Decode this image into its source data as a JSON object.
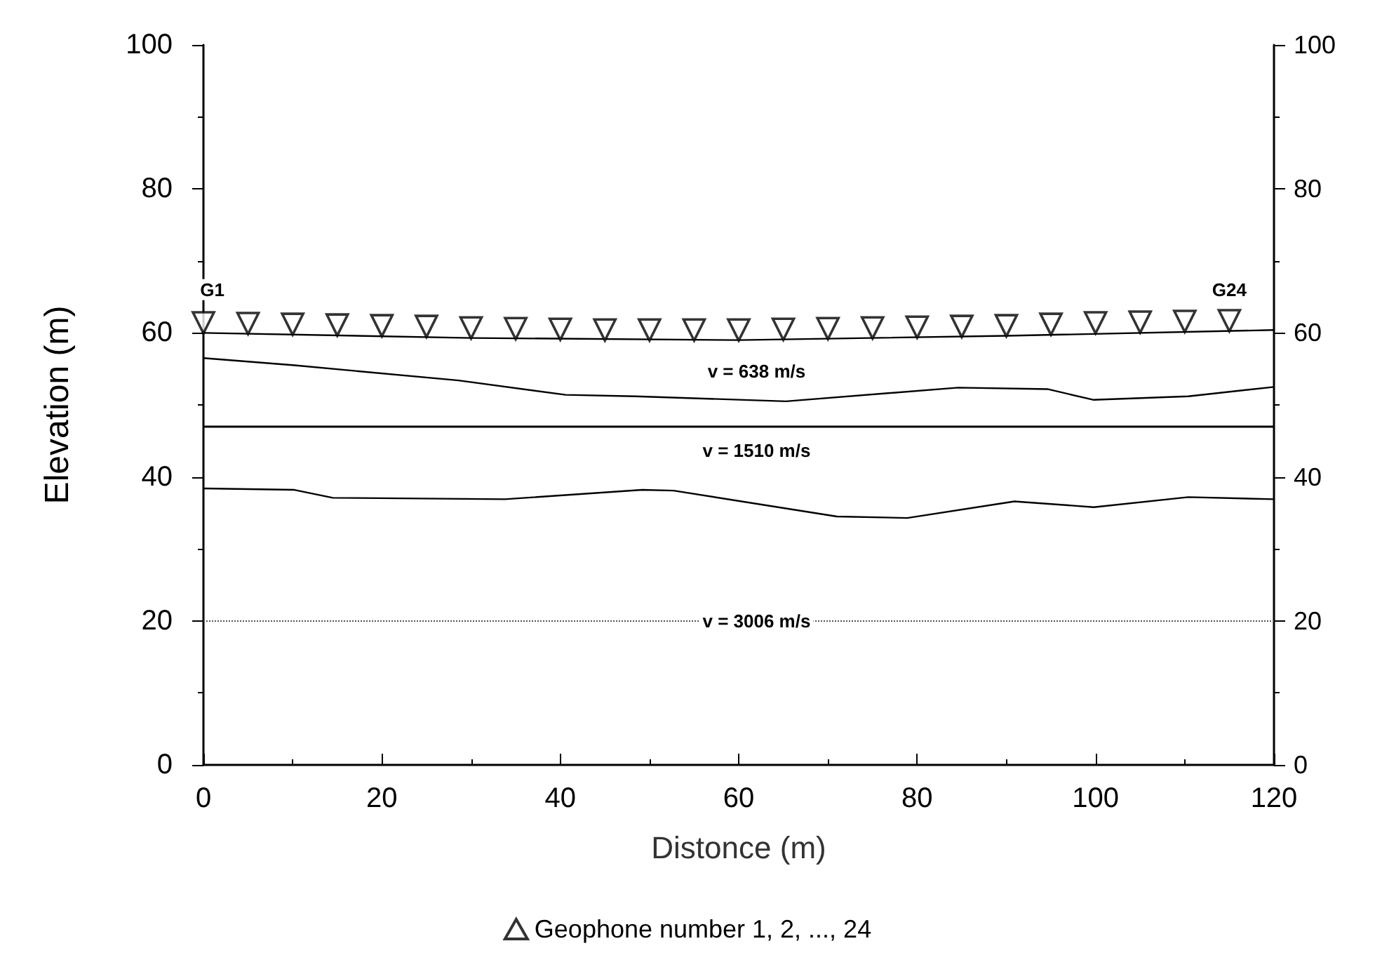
{
  "chart_data": {
    "type": "line",
    "xlabel": "Distonce (m)",
    "ylabel": "Elevation (m)",
    "xlim": [
      0,
      120
    ],
    "xticks": [
      0,
      20,
      40,
      60,
      80,
      100,
      120
    ],
    "ylim": [
      0,
      100
    ],
    "yticks": [
      0,
      20,
      40,
      60,
      80,
      100
    ],
    "y2lim": [
      0,
      100
    ],
    "y2ticks": [
      0,
      20,
      40,
      60,
      80,
      100
    ],
    "grid": false,
    "legend": "bottom",
    "line_style": "solid",
    "series": [
      {
        "color": "#000000",
        "marker": "none",
        "x": [
          0,
          30,
          60,
          90,
          120
        ],
        "values": [
          60,
          59.3,
          59,
          59.6,
          60.4
        ]
      },
      {
        "color": "#000000",
        "marker": "none",
        "x": [
          0,
          10.2,
          28.6,
          40.6,
          48.4,
          65.3,
          84.6,
          94.6,
          99.8,
          110.4,
          120
        ],
        "values": [
          56.5,
          55.5,
          53.4,
          51.4,
          51.2,
          50.5,
          52.4,
          52.2,
          50.7,
          51.2,
          52.5
        ]
      },
      {
        "color": "#000000",
        "marker": "none",
        "x": [
          0,
          10.2,
          14.5,
          33.8,
          49.2,
          52.7,
          71,
          78.9,
          90.9,
          99.8,
          110.4,
          120
        ],
        "values": [
          38.4,
          38.2,
          37.1,
          36.9,
          38.2,
          38.1,
          34.5,
          34.3,
          36.6,
          35.8,
          37.2,
          36.9
        ]
      },
      {
        "name": "Geophone number 1, 2, ..., 24",
        "type": "scatter",
        "color": "#000000",
        "marker": "triangle",
        "x": [
          0,
          5,
          10,
          15,
          20,
          25,
          30,
          35,
          40,
          45,
          50,
          55,
          60,
          65,
          70,
          75,
          80,
          85,
          90,
          95,
          100,
          105,
          110,
          115
        ],
        "values": [
          61.4,
          61.3,
          61.2,
          61.1,
          61,
          60.9,
          60.7,
          60.6,
          60.5,
          60.4,
          60.4,
          60.4,
          60.4,
          60.5,
          60.6,
          60.7,
          60.8,
          60.9,
          61,
          61.2,
          61.4,
          61.5,
          61.6,
          61.7
        ]
      }
    ],
    "ref_lines": [
      {
        "axis": "y",
        "value": 47,
        "color": "#000000",
        "line_style": "solid"
      },
      {
        "axis": "y",
        "value": 20,
        "color": "#555555",
        "line_style": "dotted"
      }
    ],
    "annotations": [
      {
        "text": "G1",
        "x": 1,
        "y": 66
      },
      {
        "text": "G24",
        "x": 115,
        "y": 66
      },
      "v = 638 m/s",
      "v = 1510 m/s",
      {
        "text": "v = 3006 m/s",
        "x": 62,
        "y": 20
      }
    ]
  }
}
